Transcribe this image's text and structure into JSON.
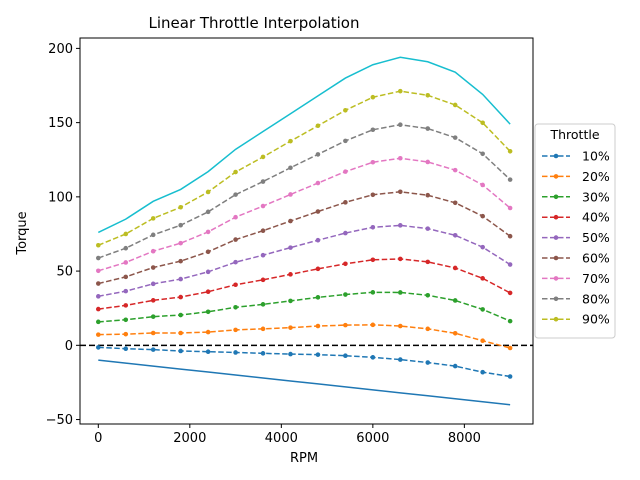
{
  "chart_data": {
    "type": "line",
    "title": "Linear Throttle Interpolation",
    "xlabel": "RPM",
    "ylabel": "Torque",
    "xlim": [
      -400,
      9500
    ],
    "ylim": [
      -53,
      207
    ],
    "xticks": [
      0,
      2000,
      4000,
      6000,
      8000
    ],
    "yticks": [
      -50,
      0,
      50,
      100,
      150,
      200
    ],
    "grid": false,
    "legend": {
      "title": "Throttle",
      "placement": "right-outside"
    },
    "zero_line": {
      "y": 0,
      "style": "dashed",
      "color": "#000000"
    },
    "x": [
      0,
      600,
      1200,
      1800,
      2400,
      3000,
      3600,
      4200,
      4800,
      5400,
      6000,
      6600,
      7200,
      7800,
      8400,
      9000
    ],
    "min_curve": {
      "color": "#1f77b4",
      "values": [
        -10,
        -12,
        -14,
        -16,
        -18,
        -20,
        -22,
        -24,
        -26,
        -28,
        -30,
        -32,
        -34,
        -36,
        -38,
        -40
      ]
    },
    "max_curve": {
      "color": "#17becf",
      "values": [
        76,
        85,
        97,
        105,
        117,
        132,
        144,
        156,
        168,
        180,
        189,
        194,
        191,
        184,
        169,
        149
      ]
    },
    "series": [
      {
        "name": "10%",
        "color": "#1f77b4",
        "values": [
          -1.4,
          -2.3,
          -2.9,
          -3.8,
          -4.3,
          -4.8,
          -5.4,
          -5.9,
          -6.3,
          -7.0,
          -8.1,
          -9.6,
          -11.6,
          -14.0,
          -18.1,
          -21.0
        ]
      },
      {
        "name": "20%",
        "color": "#ff7f0e",
        "values": [
          7.2,
          7.5,
          8.3,
          8.3,
          8.9,
          10.4,
          11.1,
          11.9,
          13.0,
          13.6,
          13.8,
          13.0,
          11.1,
          8.1,
          3.1,
          -1.8
        ]
      },
      {
        "name": "30%",
        "color": "#2ca02c",
        "values": [
          15.8,
          17.2,
          19.3,
          20.4,
          22.6,
          25.6,
          27.6,
          29.9,
          32.3,
          34.2,
          35.7,
          35.6,
          33.7,
          30.2,
          24.2,
          16.3
        ]
      },
      {
        "name": "40%",
        "color": "#d62728",
        "values": [
          24.4,
          26.9,
          30.3,
          32.5,
          36.1,
          40.8,
          44.1,
          47.8,
          51.5,
          54.9,
          57.6,
          58.2,
          56.2,
          52.1,
          45.1,
          35.3
        ]
      },
      {
        "name": "50%",
        "color": "#9467bd",
        "values": [
          33.0,
          36.5,
          41.4,
          44.6,
          49.5,
          56.0,
          60.7,
          65.8,
          70.8,
          75.6,
          79.5,
          80.8,
          78.6,
          74.1,
          66.1,
          54.4
        ]
      },
      {
        "name": "60%",
        "color": "#8c564b",
        "values": [
          41.6,
          46.1,
          52.4,
          56.7,
          63.0,
          71.2,
          77.2,
          83.7,
          90.1,
          96.3,
          101.4,
          103.4,
          101.1,
          96.0,
          87.0,
          73.5
        ]
      },
      {
        "name": "70%",
        "color": "#e377c2",
        "values": [
          50.2,
          55.8,
          63.4,
          68.8,
          76.4,
          86.3,
          93.8,
          101.6,
          109.3,
          117.0,
          123.3,
          126.0,
          123.5,
          118.0,
          108.0,
          92.5
        ]
      },
      {
        "name": "80%",
        "color": "#7f7f7f",
        "values": [
          58.8,
          65.4,
          74.4,
          80.9,
          89.9,
          101.5,
          110.3,
          119.6,
          128.6,
          137.7,
          145.2,
          148.6,
          146.0,
          139.9,
          129.0,
          111.6
        ]
      },
      {
        "name": "90%",
        "color": "#bcbd22",
        "values": [
          67.4,
          75.0,
          85.5,
          93.0,
          103.3,
          116.7,
          126.9,
          137.5,
          147.9,
          158.3,
          167.1,
          171.2,
          168.4,
          161.9,
          149.9,
          130.7
        ]
      }
    ]
  }
}
